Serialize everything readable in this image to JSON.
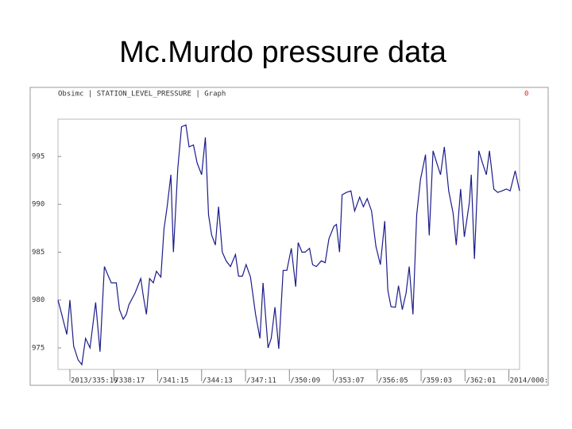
{
  "chart_data": {
    "type": "line",
    "title": "Mc.Murdo pressure data",
    "subtitle": "Obsimc | STATION_LEVEL_PRESSURE | Graph",
    "annotations": [
      "0"
    ],
    "color": "#1c1c8a",
    "x": [
      -19,
      -13,
      -5,
      0,
      6,
      13,
      19,
      25,
      32,
      41,
      48,
      55,
      62,
      66,
      74,
      79,
      85,
      90,
      94,
      104,
      113,
      117,
      122,
      127,
      133,
      138,
      145,
      150,
      155,
      161,
      165,
      172,
      178,
      185,
      190,
      197,
      203,
      210,
      216,
      221,
      226,
      232,
      237,
      243,
      249,
      256,
      264,
      269,
      275,
      281,
      288,
      296,
      303,
      308,
      316,
      321,
      327,
      333,
      340,
      346,
      353,
      360,
      364,
      370,
      375,
      382,
      387,
      393,
      401,
      407,
      413,
      421,
      425,
      430,
      434,
      441,
      448,
      454,
      462,
      468,
      474,
      481,
      488,
      495,
      502,
      507,
      512,
      519,
      524,
      530,
      536,
      541,
      547,
      553,
      559,
      567,
      573,
      579,
      586,
      591,
      597,
      604,
      611,
      616,
      623,
      629,
      637,
      640,
      645,
      652,
      658,
      664,
      669,
      676,
      682,
      689,
      696,
      702,
      710,
      717
    ],
    "values": [
      980,
      978.5,
      976.4,
      980,
      975.2,
      973.75,
      973.25,
      976,
      975,
      979.75,
      974.6,
      983.5,
      982.4,
      981.8,
      981.8,
      979,
      978,
      978.5,
      979.5,
      980.75,
      982.25,
      980.4,
      978.5,
      982.25,
      981.8,
      983,
      982.4,
      987.4,
      989.75,
      993.1,
      985,
      993.75,
      998.1,
      998.3,
      996,
      996.2,
      994.3,
      993.1,
      997,
      988.9,
      986.8,
      985.75,
      989.75,
      985,
      984.1,
      983.5,
      984.75,
      982.5,
      982.5,
      983.7,
      982.4,
      978.5,
      976,
      981.8,
      975,
      976,
      979.25,
      974.9,
      983.1,
      983.1,
      985.4,
      981.4,
      986,
      985,
      985,
      985.4,
      983.7,
      983.5,
      984.1,
      983.9,
      986.4,
      987.7,
      987.9,
      985,
      991,
      991.25,
      991.4,
      989.3,
      990.75,
      989.75,
      990.6,
      989.3,
      985.6,
      983.7,
      988.25,
      981,
      979.3,
      979.25,
      981.5,
      979,
      980.7,
      983.5,
      978.5,
      988.9,
      992.6,
      995.2,
      986.75,
      995.6,
      994.1,
      993.1,
      996,
      991.4,
      989.1,
      985.75,
      991.6,
      986.6,
      990.2,
      993.1,
      984.3,
      995.6,
      994.3,
      993.1,
      995.6,
      991.6,
      991.25,
      991.4,
      991.6,
      991.4,
      993.5,
      991.4
    ],
    "xlim": [
      -19,
      717
    ],
    "ylim": [
      972.75,
      998.9
    ],
    "yticks": [
      975,
      980,
      985,
      990,
      995
    ],
    "xticks": [
      {
        "value": 0,
        "label": "2013/335:19"
      },
      {
        "value": 70,
        "label": "/338:17"
      },
      {
        "value": 140,
        "label": "/341:15"
      },
      {
        "value": 210,
        "label": "/344:13"
      },
      {
        "value": 280,
        "label": "/347:11"
      },
      {
        "value": 350,
        "label": "/350:09"
      },
      {
        "value": 420,
        "label": "/353:07"
      },
      {
        "value": 490,
        "label": "/356:05"
      },
      {
        "value": 560,
        "label": "/359:03"
      },
      {
        "value": 630,
        "label": "/362:01"
      },
      {
        "value": 700,
        "label": "2014/000:"
      }
    ]
  }
}
